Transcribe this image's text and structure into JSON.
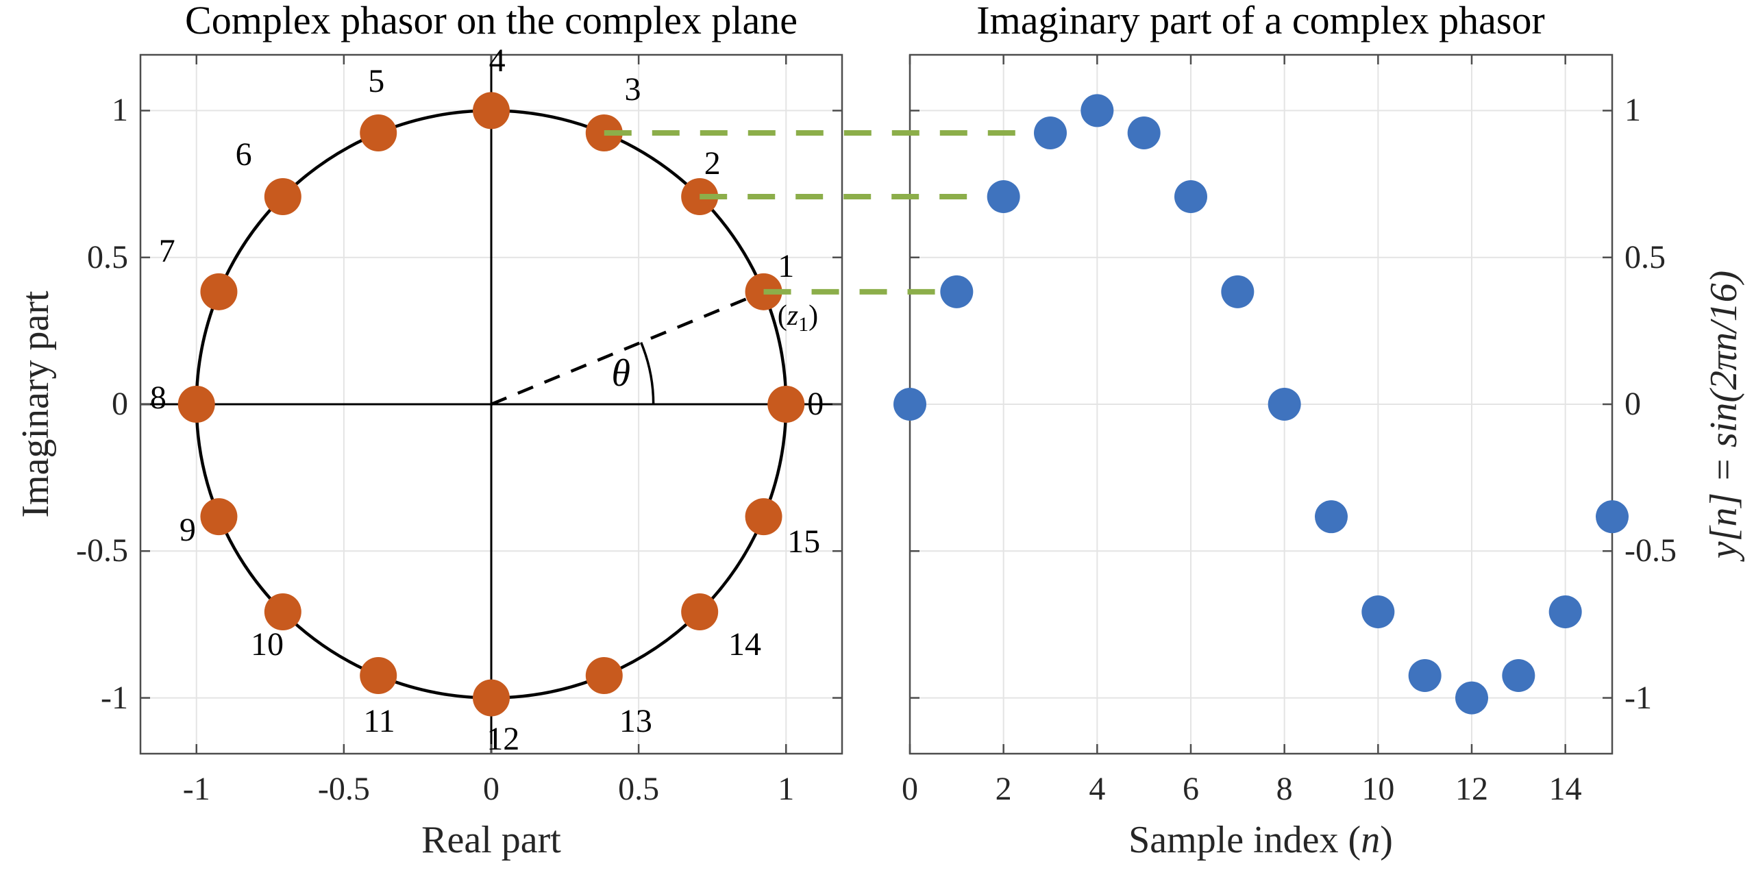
{
  "figure": {
    "bg": "#ffffff",
    "colors": {
      "orange": "#C85A1E",
      "blue": "#3F73BE",
      "green": "#8CAE4A",
      "grid": "#E4E4E4",
      "spine": "#4D4D4D",
      "tick_text": "#262626",
      "black": "#000000"
    }
  },
  "chart_data": [
    {
      "type": "scatter",
      "title": "Complex phasor on the complex plane",
      "xlabel": "Real part",
      "ylabel": "Imaginary part",
      "xlim": [
        -1.19,
        1.19
      ],
      "ylim": [
        -1.19,
        1.19
      ],
      "grid": true,
      "zero_axes": true,
      "unit_circle": true,
      "marker_color": "#C85A1E",
      "xticks": [
        {
          "v": -1,
          "l": "-1"
        },
        {
          "v": -0.5,
          "l": "-0.5"
        },
        {
          "v": 0,
          "l": "0"
        },
        {
          "v": 0.5,
          "l": "0.5"
        },
        {
          "v": 1,
          "l": "1"
        }
      ],
      "yticks": [
        {
          "v": 1,
          "l": "1"
        },
        {
          "v": 0.5,
          "l": "0.5"
        },
        {
          "v": 0,
          "l": "0"
        },
        {
          "v": -0.5,
          "l": "-0.5"
        },
        {
          "v": -1,
          "l": "-1"
        }
      ],
      "points": [
        {
          "n": 0,
          "x": 1,
          "y": 0,
          "label": "0",
          "lp": [
            1.1,
            0.0
          ]
        },
        {
          "n": 1,
          "x": 0.924,
          "y": 0.383,
          "label": "1",
          "lp": [
            1.0,
            0.47
          ]
        },
        {
          "n": 2,
          "x": 0.707,
          "y": 0.707,
          "label": "2",
          "lp": [
            0.75,
            0.82
          ]
        },
        {
          "n": 3,
          "x": 0.383,
          "y": 0.924,
          "label": "3",
          "lp": [
            0.48,
            1.07
          ]
        },
        {
          "n": 4,
          "x": 0,
          "y": 1,
          "label": "4",
          "lp": [
            0.02,
            1.17
          ]
        },
        {
          "n": 5,
          "x": -0.383,
          "y": 0.924,
          "label": "5",
          "lp": [
            -0.39,
            1.1
          ]
        },
        {
          "n": 6,
          "x": -0.707,
          "y": 0.707,
          "label": "6",
          "lp": [
            -0.84,
            0.85
          ]
        },
        {
          "n": 7,
          "x": -0.924,
          "y": 0.383,
          "label": "7",
          "lp": [
            -1.1,
            0.52
          ]
        },
        {
          "n": 8,
          "x": -1,
          "y": 0,
          "label": "8",
          "lp": [
            -1.13,
            0.02
          ]
        },
        {
          "n": 9,
          "x": -0.924,
          "y": -0.383,
          "label": "9",
          "lp": [
            -1.03,
            -0.43
          ]
        },
        {
          "n": 10,
          "x": -0.707,
          "y": -0.707,
          "label": "10",
          "lp": [
            -0.76,
            -0.82
          ]
        },
        {
          "n": 11,
          "x": -0.383,
          "y": -0.924,
          "label": "11",
          "lp": [
            -0.38,
            -1.08
          ]
        },
        {
          "n": 12,
          "x": 0,
          "y": -1,
          "label": "12",
          "lp": [
            0.04,
            -1.14
          ]
        },
        {
          "n": 13,
          "x": 0.383,
          "y": -0.924,
          "label": "13",
          "lp": [
            0.49,
            -1.08
          ]
        },
        {
          "n": 14,
          "x": 0.707,
          "y": -0.707,
          "label": "14",
          "lp": [
            0.86,
            -0.82
          ]
        },
        {
          "n": 15,
          "x": 0.924,
          "y": -0.383,
          "label": "15",
          "lp": [
            1.06,
            -0.47
          ]
        }
      ],
      "angle": {
        "theta_label": "θ",
        "point": 1,
        "deg": 22.5,
        "arc_radius": 0.55,
        "theta_pos": [
          0.44,
          0.105
        ],
        "z_pre": "(",
        "z_var": "z",
        "z_sub": "1",
        "z_post": ")",
        "z_pos": [
          1.04,
          0.3
        ]
      }
    },
    {
      "type": "scatter",
      "title": "Imaginary part of a complex phasor",
      "xlabel_parts": {
        "prefix": "Sample index (",
        "var": "n",
        "suffix": ")"
      },
      "ylabel": "y[n] = sin(2πn/16)",
      "ylabel_side": "right",
      "xlim": [
        0,
        15
      ],
      "ylim": [
        -1.19,
        1.19
      ],
      "grid": true,
      "marker_color": "#3F73BE",
      "connector_color": "#8CAE4A",
      "xticks": [
        {
          "v": 0,
          "l": "0"
        },
        {
          "v": 2,
          "l": "2"
        },
        {
          "v": 4,
          "l": "4"
        },
        {
          "v": 6,
          "l": "6"
        },
        {
          "v": 8,
          "l": "8"
        },
        {
          "v": 10,
          "l": "10"
        },
        {
          "v": 12,
          "l": "12"
        },
        {
          "v": 14,
          "l": "14"
        }
      ],
      "yticks": [
        {
          "v": 1,
          "l": "1"
        },
        {
          "v": 0.5,
          "l": "0.5"
        },
        {
          "v": 0,
          "l": "0"
        },
        {
          "v": -0.5,
          "l": "-0.5"
        },
        {
          "v": -1,
          "l": "-1"
        }
      ],
      "x": [
        0,
        1,
        2,
        3,
        4,
        5,
        6,
        7,
        8,
        9,
        10,
        11,
        12,
        13,
        14,
        15
      ],
      "y": [
        0,
        0.383,
        0.707,
        0.924,
        1,
        0.924,
        0.707,
        0.383,
        0,
        -0.383,
        -0.707,
        -0.924,
        -1,
        -0.924,
        -0.707,
        -0.383
      ],
      "highlight_lines": [
        {
          "k": 1,
          "y": 0.383
        },
        {
          "k": 2,
          "y": 0.707
        },
        {
          "k": 3,
          "y": 0.924
        }
      ]
    }
  ]
}
